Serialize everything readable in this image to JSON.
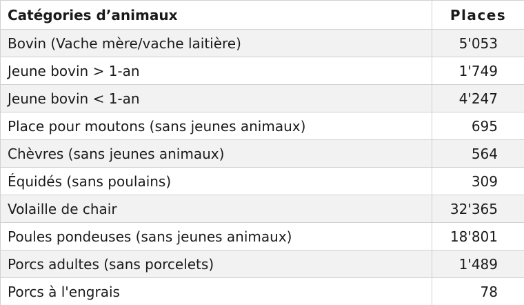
{
  "table": {
    "header": {
      "category": "Catégories d’animaux",
      "places": "Places"
    },
    "rows": [
      {
        "category": "Bovin (Vache mère/vache laitière)",
        "places": "5'053"
      },
      {
        "category": "Jeune bovin > 1-an",
        "places": "1'749"
      },
      {
        "category": "Jeune bovin < 1-an",
        "places": "4'247"
      },
      {
        "category": "Place pour moutons (sans jeunes animaux)",
        "places": "695"
      },
      {
        "category": "Chèvres (sans jeunes animaux)",
        "places": "564"
      },
      {
        "category": "Équidés (sans poulains)",
        "places": "309"
      },
      {
        "category": "Volaille de chair",
        "places": "32'365"
      },
      {
        "category": "Poules pondeuses (sans jeunes animaux)",
        "places": "18'801"
      },
      {
        "category": "Porcs adultes (sans porcelets)",
        "places": "1'489"
      },
      {
        "category": "Porcs à l'engrais",
        "places": "78"
      }
    ]
  }
}
